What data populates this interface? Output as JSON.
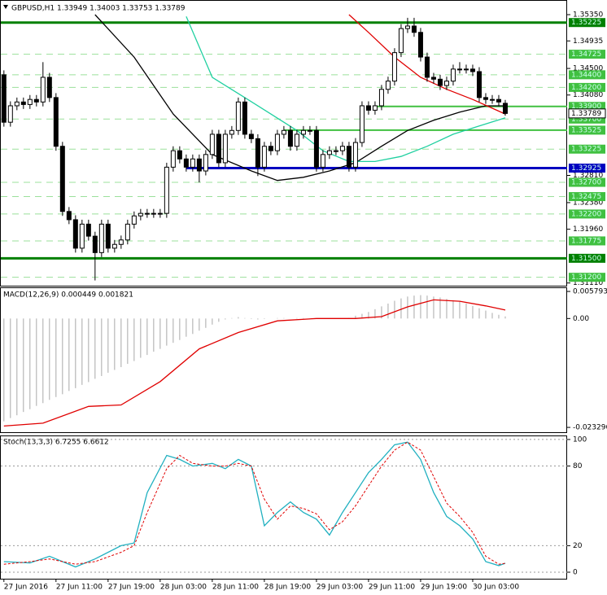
{
  "chart_data": [
    {
      "type": "candlestick",
      "title": "GBPUSD,H1  1.33949 1.34003 1.33753 1.33789",
      "xlim": [
        -0.6,
        86.5
      ],
      "ylim": [
        1.3108,
        1.3553
      ],
      "yticks": [
        {
          "value": 1.3535,
          "label": "1.35350"
        },
        1.34935,
        {
          "value": 1.345,
          "label": "1.34500"
        },
        {
          "value": 1.3408,
          "label": "1.34080"
        },
        {
          "value": 1.3281,
          "label": "1.32810"
        },
        {
          "value": 1.3238,
          "label": "1.32380"
        },
        {
          "value": 1.3196,
          "label": "1.31960"
        },
        {
          "value": 1.3111,
          "label": "1.31110"
        }
      ],
      "bull_color": "#ffffff",
      "bear_color": "#000000",
      "ohlc": [
        [
          1.344,
          1.3447,
          1.3358,
          1.3365
        ],
        [
          1.3365,
          1.3398,
          1.3358,
          1.3391
        ],
        [
          1.3391,
          1.3404,
          1.3384,
          1.3397
        ],
        [
          1.3397,
          1.3404,
          1.3386,
          1.3393
        ],
        [
          1.3393,
          1.3408,
          1.3386,
          1.3401
        ],
        [
          1.3401,
          1.3408,
          1.339,
          1.3397
        ],
        [
          1.3397,
          1.346,
          1.339,
          1.3436
        ],
        [
          1.3436,
          1.3443,
          1.3397,
          1.3404
        ],
        [
          1.3404,
          1.3411,
          1.332,
          1.3327
        ],
        [
          1.3327,
          1.3334,
          1.3217,
          1.3224
        ],
        [
          1.3224,
          1.3231,
          1.3204,
          1.3211
        ],
        [
          1.3211,
          1.3218,
          1.3159,
          1.3166
        ],
        [
          1.3166,
          1.3211,
          1.3159,
          1.3204
        ],
        [
          1.3204,
          1.3211,
          1.3178,
          1.3185
        ],
        [
          1.3185,
          1.3192,
          1.3115,
          1.3159
        ],
        [
          1.3159,
          1.3211,
          1.3152,
          1.3204
        ],
        [
          1.3204,
          1.3211,
          1.3159,
          1.3166
        ],
        [
          1.3166,
          1.3179,
          1.3159,
          1.3172
        ],
        [
          1.3172,
          1.3186,
          1.3165,
          1.3179
        ],
        [
          1.3179,
          1.3211,
          1.3172,
          1.3204
        ],
        [
          1.3204,
          1.3224,
          1.3197,
          1.3217
        ],
        [
          1.3217,
          1.3228,
          1.321,
          1.3221
        ],
        [
          1.3221,
          1.3228,
          1.3214,
          1.3221
        ],
        [
          1.3221,
          1.3228,
          1.3214,
          1.3221
        ],
        [
          1.3221,
          1.3228,
          1.3214,
          1.3221
        ],
        [
          1.3221,
          1.3301,
          1.3214,
          1.3294
        ],
        [
          1.3294,
          1.3327,
          1.3287,
          1.332
        ],
        [
          1.332,
          1.3327,
          1.33,
          1.3307
        ],
        [
          1.3307,
          1.3314,
          1.3287,
          1.3294
        ],
        [
          1.3294,
          1.3314,
          1.3287,
          1.3307
        ],
        [
          1.3307,
          1.3314,
          1.327,
          1.3288
        ],
        [
          1.3288,
          1.3321,
          1.3281,
          1.3314
        ],
        [
          1.3314,
          1.3353,
          1.3307,
          1.3346
        ],
        [
          1.3346,
          1.3353,
          1.3294,
          1.3301
        ],
        [
          1.3301,
          1.3353,
          1.3294,
          1.3346
        ],
        [
          1.3346,
          1.3359,
          1.3339,
          1.3352
        ],
        [
          1.3352,
          1.3404,
          1.3345,
          1.3397
        ],
        [
          1.3397,
          1.3404,
          1.3339,
          1.3346
        ],
        [
          1.3346,
          1.3353,
          1.3332,
          1.3339
        ],
        [
          1.3339,
          1.3346,
          1.328,
          1.3294
        ],
        [
          1.3294,
          1.3334,
          1.3287,
          1.3327
        ],
        [
          1.3327,
          1.3334,
          1.3313,
          1.332
        ],
        [
          1.332,
          1.3353,
          1.3313,
          1.3346
        ],
        [
          1.3346,
          1.3359,
          1.3339,
          1.3352
        ],
        [
          1.3352,
          1.3359,
          1.332,
          1.3327
        ],
        [
          1.3327,
          1.3353,
          1.332,
          1.3346
        ],
        [
          1.3346,
          1.3359,
          1.3339,
          1.3352
        ],
        [
          1.3352,
          1.3359,
          1.3345,
          1.3352
        ],
        [
          1.3352,
          1.3359,
          1.3287,
          1.3294
        ],
        [
          1.3294,
          1.3321,
          1.3287,
          1.3314
        ],
        [
          1.3314,
          1.3327,
          1.3307,
          1.332
        ],
        [
          1.332,
          1.3327,
          1.3313,
          1.332
        ],
        [
          1.332,
          1.3334,
          1.3313,
          1.3327
        ],
        [
          1.3327,
          1.3334,
          1.3287,
          1.3294
        ],
        [
          1.3294,
          1.334,
          1.3287,
          1.3333
        ],
        [
          1.3333,
          1.3398,
          1.3326,
          1.3391
        ],
        [
          1.3391,
          1.3398,
          1.3377,
          1.3384
        ],
        [
          1.3384,
          1.3398,
          1.3377,
          1.3391
        ],
        [
          1.3391,
          1.3424,
          1.3384,
          1.3417
        ],
        [
          1.3417,
          1.3437,
          1.341,
          1.343
        ],
        [
          1.343,
          1.3482,
          1.3423,
          1.3475
        ],
        [
          1.3475,
          1.352,
          1.3468,
          1.3513
        ],
        [
          1.3513,
          1.353,
          1.3506,
          1.3517
        ],
        [
          1.3517,
          1.353,
          1.35,
          1.3507
        ],
        [
          1.3507,
          1.3514,
          1.3461,
          1.3468
        ],
        [
          1.3468,
          1.3475,
          1.3429,
          1.3436
        ],
        [
          1.3436,
          1.3443,
          1.3426,
          1.3433
        ],
        [
          1.3433,
          1.344,
          1.3416,
          1.3423
        ],
        [
          1.3423,
          1.3437,
          1.3416,
          1.343
        ],
        [
          1.343,
          1.3456,
          1.3423,
          1.3449
        ],
        [
          1.3449,
          1.346,
          1.3442,
          1.3449
        ],
        [
          1.3449,
          1.3456,
          1.3442,
          1.3449
        ],
        [
          1.3449,
          1.3456,
          1.3438,
          1.3445
        ],
        [
          1.3445,
          1.3452,
          1.3397,
          1.3404
        ],
        [
          1.3404,
          1.3411,
          1.3394,
          1.3401
        ],
        [
          1.3401,
          1.3408,
          1.3394,
          1.3401
        ],
        [
          1.3401,
          1.3408,
          1.339,
          1.3397
        ],
        [
          1.33949,
          1.34003,
          1.33753,
          1.33789
        ]
      ],
      "lines": [
        {
          "color": "#000000",
          "x": [
            14,
            20,
            26,
            32,
            38,
            42,
            46,
            50,
            54,
            58,
            62,
            66,
            70,
            74,
            77
          ],
          "values": [
            1.3535,
            1.3468,
            1.3378,
            1.3314,
            1.3288,
            1.3273,
            1.3278,
            1.3288,
            1.3301,
            1.3327,
            1.3352,
            1.3368,
            1.3381,
            1.3391,
            1.3391
          ]
        },
        {
          "color": "#e00000",
          "x": [
            53,
            56,
            60,
            64,
            68,
            72,
            77
          ],
          "values": [
            1.3535,
            1.3507,
            1.3468,
            1.3436,
            1.3417,
            1.3401,
            1.3378
          ]
        },
        {
          "color": "#20d0a0",
          "x": [
            28,
            32,
            37,
            41,
            45,
            49,
            53,
            57,
            61,
            65,
            69,
            73,
            77
          ],
          "values": [
            1.3532,
            1.3436,
            1.3404,
            1.3378,
            1.3352,
            1.332,
            1.3303,
            1.3303,
            1.3311,
            1.3327,
            1.3346,
            1.3359,
            1.3372
          ]
        }
      ],
      "levels": [
        {
          "value": 1.35225,
          "label": "1.35225",
          "color": "#008000",
          "line": "thick"
        },
        {
          "value": 1.34725,
          "label": "1.34725",
          "color": "#40c040",
          "line": "dashed"
        },
        {
          "value": 1.344,
          "label": "1.34400",
          "color": "#40c040",
          "line": "dashed"
        },
        {
          "value": 1.342,
          "label": "1.34200",
          "color": "#40c040",
          "line": "dashed"
        },
        {
          "value": 1.339,
          "label": "1.33900",
          "color": "#40c040",
          "line": "solid",
          "from": 57
        },
        {
          "value": 1.337,
          "label": "1.33700",
          "color": "#40c040",
          "line": "dashed"
        },
        {
          "value": 1.33525,
          "label": "1.33525",
          "color": "#40c040",
          "line": "solid",
          "from": 43
        },
        {
          "value": 1.33225,
          "label": "1.33225",
          "color": "#40c040",
          "line": "dashed"
        },
        {
          "value": 1.32925,
          "label": "1.32925",
          "color": "#0000c0",
          "line": "thick",
          "from": 28
        },
        {
          "value": 1.327,
          "label": "1.32700",
          "color": "#40c040",
          "line": "dashed"
        },
        {
          "value": 1.32475,
          "label": "1.32475",
          "color": "#40c040",
          "line": "dashed"
        },
        {
          "value": 1.322,
          "label": "1.32200",
          "color": "#40c040",
          "line": "dashed"
        },
        {
          "value": 1.31775,
          "label": "1.31775",
          "color": "#40c040",
          "line": "dashed"
        },
        {
          "value": 1.315,
          "label": "1.31500",
          "color": "#008000",
          "line": "thick"
        },
        {
          "value": 1.312,
          "label": "1.31200",
          "color": "#40c040",
          "line": "dashed"
        }
      ],
      "last_price": {
        "value": 1.33789,
        "label": "1.33789"
      }
    },
    {
      "type": "macd",
      "title": "MACD(12,26,9) 0.000449 0.001821",
      "xlim": [
        -0.6,
        86.5
      ],
      "ylim": [
        -0.0245,
        0.0065
      ],
      "yticks": [
        0.005793,
        {
          "value": 0,
          "label": "0.00"
        },
        -0.023296
      ],
      "series": [
        {
          "kind": "histogram",
          "color": "#a8a8a8",
          "values": [
            -0.022,
            -0.0213,
            -0.0207,
            -0.02,
            -0.0194,
            -0.0187,
            -0.0181,
            -0.0174,
            -0.0168,
            -0.0162,
            -0.0155,
            -0.0149,
            -0.0142,
            -0.0136,
            -0.0129,
            -0.0123,
            -0.0116,
            -0.011,
            -0.0104,
            -0.0097,
            -0.0091,
            -0.0084,
            -0.0078,
            -0.0071,
            -0.0065,
            -0.0058,
            -0.0052,
            -0.0046,
            -0.0039,
            -0.0033,
            -0.0026,
            -0.002,
            -0.0013,
            -0.0007,
            -0.0002,
            0.0001,
            0.0003,
            0.0001,
            -0.0001,
            -0.0002,
            -0.0001,
            0.0,
            0.0001,
            0.0001,
            0.0,
            0.0001,
            0.0001,
            -0.0001,
            -0.0001,
            0.0,
            0.0,
            0.0,
            -0.0001,
            0.0001,
            0.0006,
            0.001,
            0.0014,
            0.002,
            0.0026,
            0.0032,
            0.0038,
            0.0043,
            0.0047,
            0.0049,
            0.005,
            0.0049,
            0.0047,
            0.0045,
            0.0042,
            0.0039,
            0.0036,
            0.0032,
            0.0027,
            0.0022,
            0.0017,
            0.0012,
            0.0008,
            0.000449
          ]
        },
        {
          "kind": "line",
          "color": "#e00000",
          "x": [
            0,
            6,
            13,
            18,
            24,
            30,
            36,
            42,
            48,
            54,
            58,
            62,
            66,
            70,
            74,
            77
          ],
          "values": [
            -0.023,
            -0.0224,
            -0.0188,
            -0.0185,
            -0.0135,
            -0.0065,
            -0.003,
            -0.0005,
            0.0,
            0.0,
            0.0004,
            0.0025,
            0.004,
            0.0037,
            0.0027,
            0.001821
          ]
        }
      ]
    },
    {
      "type": "stochastic",
      "title": "Stoch(13,3,3) 6.7255 6.6612",
      "xlim": [
        -0.6,
        86.5
      ],
      "ylim": [
        -4.9,
        101.8
      ],
      "yticks": [
        100,
        80,
        20,
        0
      ],
      "grid": "dashed",
      "xticks": [
        {
          "value": 0,
          "label": "27 Jun 2016"
        },
        {
          "value": 8,
          "label": "27 Jun 11:00"
        },
        {
          "value": 16,
          "label": "27 Jun 19:00"
        },
        {
          "value": 24,
          "label": "28 Jun 03:00"
        },
        {
          "value": 32,
          "label": "28 Jun 11:00"
        },
        {
          "value": 40,
          "label": "28 Jun 19:00"
        },
        {
          "value": 48,
          "label": "29 Jun 03:00"
        },
        {
          "value": 56,
          "label": "29 Jun 11:00"
        },
        {
          "value": 64,
          "label": "29 Jun 19:00"
        },
        {
          "value": 72,
          "label": "30 Jun 03:00"
        }
      ],
      "series": [
        {
          "kind": "line",
          "color": "#20b0c0",
          "x": [
            0,
            4,
            7,
            11,
            14,
            18,
            20,
            22,
            25,
            27,
            29,
            32,
            34,
            36,
            38,
            40,
            42,
            44,
            46,
            48,
            50,
            52,
            54,
            56,
            58,
            60,
            62,
            64,
            66,
            68,
            70,
            72,
            74,
            76,
            77
          ],
          "values": [
            8,
            7,
            12,
            4,
            10,
            20,
            22,
            60,
            88,
            85,
            80,
            82,
            78,
            85,
            80,
            35,
            45,
            53,
            45,
            40,
            28,
            45,
            60,
            75,
            85,
            96,
            98,
            85,
            60,
            42,
            35,
            25,
            8,
            5,
            6.7255
          ]
        },
        {
          "kind": "dashed",
          "color": "#e00000",
          "x": [
            0,
            4,
            7,
            11,
            14,
            18,
            20,
            22,
            25,
            27,
            29,
            32,
            34,
            36,
            38,
            40,
            42,
            44,
            46,
            48,
            50,
            52,
            54,
            56,
            58,
            60,
            62,
            64,
            66,
            68,
            70,
            72,
            74,
            76,
            77
          ],
          "values": [
            6,
            8,
            10,
            6,
            8,
            15,
            20,
            45,
            78,
            88,
            82,
            80,
            80,
            82,
            80,
            55,
            40,
            50,
            48,
            44,
            32,
            38,
            50,
            65,
            80,
            92,
            98,
            92,
            72,
            52,
            42,
            30,
            12,
            6,
            6.6612
          ]
        }
      ]
    }
  ]
}
